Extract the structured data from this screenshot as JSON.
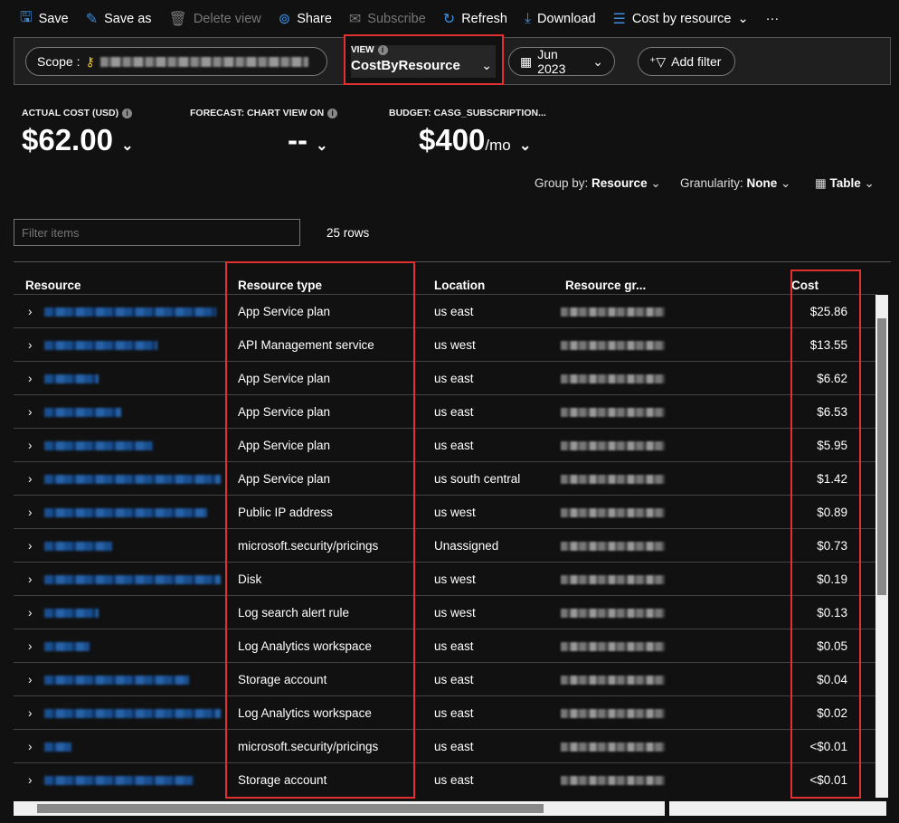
{
  "toolbar": {
    "items": [
      {
        "label": "Save",
        "icon": "save-icon",
        "enabled": true
      },
      {
        "label": "Save as",
        "icon": "save-as-icon",
        "enabled": true
      },
      {
        "label": "Delete view",
        "icon": "trash-icon",
        "enabled": false
      },
      {
        "label": "Share",
        "icon": "share-icon",
        "enabled": true
      },
      {
        "label": "Subscribe",
        "icon": "mail-icon",
        "enabled": false
      },
      {
        "label": "Refresh",
        "icon": "refresh-icon",
        "enabled": true
      },
      {
        "label": "Download",
        "icon": "download-icon",
        "enabled": true
      },
      {
        "label": "Cost by resource",
        "icon": "list-icon",
        "enabled": true
      }
    ],
    "more": "···"
  },
  "filters": {
    "scope_label": "Scope :",
    "view_label": "VIEW",
    "view_value": "CostByResource",
    "date": "Jun 2023",
    "add_filter": "Add filter"
  },
  "kpis": {
    "actual_label": "ACTUAL COST (USD)",
    "actual_value": "$62.00",
    "forecast_label": "FORECAST: CHART VIEW ON",
    "forecast_value": "--",
    "budget_label": "BUDGET: CASG_SUBSCRIPTION...",
    "budget_value": "$400",
    "budget_unit": "/mo"
  },
  "options": {
    "group_label": "Group by:",
    "group_value": "Resource",
    "gran_label": "Granularity:",
    "gran_value": "None",
    "view_value": "Table"
  },
  "filter_placeholder": "Filter items",
  "row_count": "25 rows",
  "columns": [
    "Resource",
    "Resource type",
    "Location",
    "Resource gr...",
    "Cost"
  ],
  "rows": [
    {
      "type": "App Service plan",
      "location": "us east",
      "cost": "$25.86"
    },
    {
      "type": "API Management service",
      "location": "us west",
      "cost": "$13.55"
    },
    {
      "type": "App Service plan",
      "location": "us east",
      "cost": "$6.62"
    },
    {
      "type": "App Service plan",
      "location": "us east",
      "cost": "$6.53"
    },
    {
      "type": "App Service plan",
      "location": "us east",
      "cost": "$5.95"
    },
    {
      "type": "App Service plan",
      "location": "us south central",
      "cost": "$1.42"
    },
    {
      "type": "Public IP address",
      "location": "us west",
      "cost": "$0.89"
    },
    {
      "type": "microsoft.security/pricings",
      "location": "Unassigned",
      "cost": "$0.73"
    },
    {
      "type": "Disk",
      "location": "us west",
      "cost": "$0.19"
    },
    {
      "type": "Log search alert rule",
      "location": "us west",
      "cost": "$0.13"
    },
    {
      "type": "Log Analytics workspace",
      "location": "us east",
      "cost": "$0.05"
    },
    {
      "type": "Storage account",
      "location": "us east",
      "cost": "$0.04"
    },
    {
      "type": "Log Analytics workspace",
      "location": "us east",
      "cost": "$0.02"
    },
    {
      "type": "microsoft.security/pricings",
      "location": "us east",
      "cost": "<$0.01"
    },
    {
      "type": "Storage account",
      "location": "us east",
      "cost": "<$0.01"
    }
  ],
  "colors": {
    "accent": "#3c8ee0",
    "highlight": "#e03030"
  }
}
